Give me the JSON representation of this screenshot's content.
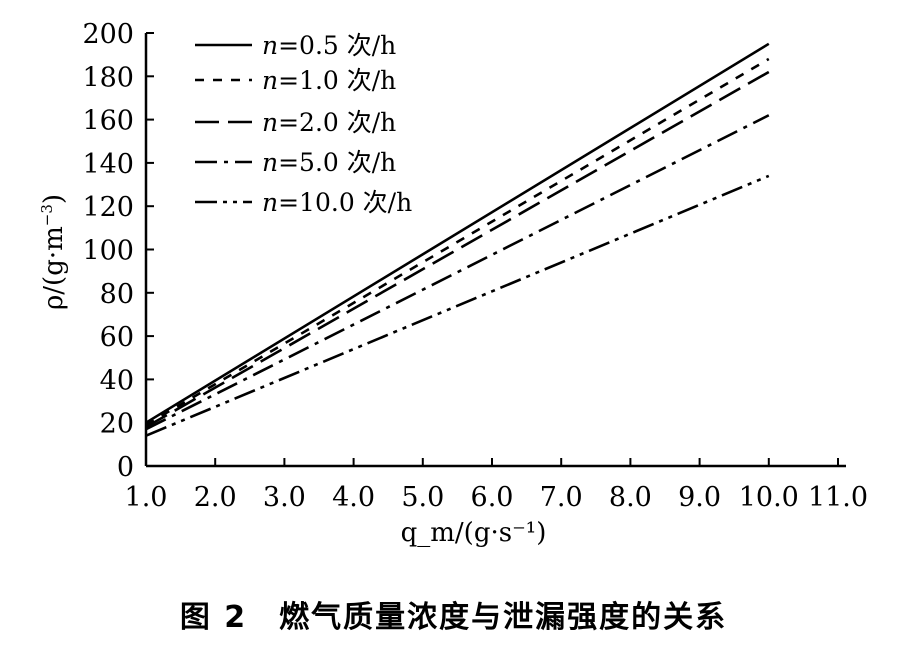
{
  "chart_data": {
    "type": "line",
    "title": "",
    "caption": "图 2　燃气质量浓度与泄漏强度的关系",
    "xlabel": "q_m/(g·s⁻¹)",
    "xlabel_main": "q",
    "xlabel_sub": "m",
    "xlabel_rest": "/(g·s",
    "xlabel_sup": "−1",
    "xlabel_end": ")",
    "ylabel_main": "ρ/(g·m",
    "ylabel_sup": "−3",
    "ylabel_end": ")",
    "xlim": [
      1.0,
      11.0
    ],
    "ylim": [
      0,
      200
    ],
    "xticks": [
      "1.0",
      "2.0",
      "3.0",
      "4.0",
      "5.0",
      "6.0",
      "7.0",
      "8.0",
      "9.0",
      "10.0",
      "11.0"
    ],
    "yticks": [
      "0",
      "20",
      "40",
      "60",
      "80",
      "100",
      "120",
      "140",
      "160",
      "180",
      "200"
    ],
    "grid": false,
    "legend_position": "top-left",
    "x": [
      1,
      10
    ],
    "series": [
      {
        "name": "n=0.5 次/h",
        "n": "n",
        "rest": "=0.5 次/h",
        "dash": "solid",
        "values": [
          20,
          195
        ]
      },
      {
        "name": "n=1.0 次/h",
        "n": "n",
        "rest": "=1.0 次/h",
        "dash": "short-dash",
        "values": [
          19,
          188
        ]
      },
      {
        "name": "n=2.0 次/h",
        "n": "n",
        "rest": "=2.0 次/h",
        "dash": "long-dash",
        "values": [
          18,
          182
        ]
      },
      {
        "name": "n=5.0 次/h",
        "n": "n",
        "rest": "=5.0 次/h",
        "dash": "dash-dot",
        "values": [
          17,
          162
        ]
      },
      {
        "name": "n=10.0 次/h",
        "n": "n",
        "rest": "=10.0 次/h",
        "dash": "dash-dot-dot",
        "values": [
          14,
          134
        ]
      }
    ],
    "line_color": "#000000"
  }
}
